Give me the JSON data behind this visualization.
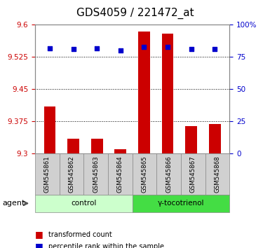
{
  "title": "GDS4059 / 221472_at",
  "samples": [
    "GSM545861",
    "GSM545862",
    "GSM545863",
    "GSM545864",
    "GSM545865",
    "GSM545866",
    "GSM545867",
    "GSM545868"
  ],
  "bar_values": [
    9.41,
    9.335,
    9.335,
    9.31,
    9.585,
    9.58,
    9.365,
    9.37
  ],
  "bar_baseline": 9.3,
  "percentile_values": [
    82,
    81,
    82,
    80,
    83,
    83,
    81,
    81
  ],
  "bar_color": "#cc0000",
  "dot_color": "#0000cc",
  "ylim_left": [
    9.3,
    9.6
  ],
  "ylim_right": [
    0,
    100
  ],
  "yticks_left": [
    9.3,
    9.375,
    9.45,
    9.525,
    9.6
  ],
  "yticks_right": [
    0,
    25,
    50,
    75,
    100
  ],
  "ytick_labels_left": [
    "9.3",
    "9.375",
    "9.45",
    "9.525",
    "9.6"
  ],
  "ytick_labels_right": [
    "0",
    "25",
    "50",
    "75",
    "100%"
  ],
  "group_labels": [
    "control",
    "γ-tocotrienol"
  ],
  "group_label_light": "#ccffcc",
  "group_label_dark": "#44dd44",
  "legend_bar_label": "transformed count",
  "legend_dot_label": "percentile rank within the sample",
  "agent_label": "agent",
  "background_color": "#ffffff",
  "plot_bg_color": "#ffffff",
  "grid_color": "#000000",
  "tick_color_left": "#cc0000",
  "tick_color_right": "#0000cc",
  "title_fontsize": 11,
  "tick_fontsize": 7.5,
  "label_fontsize": 8
}
